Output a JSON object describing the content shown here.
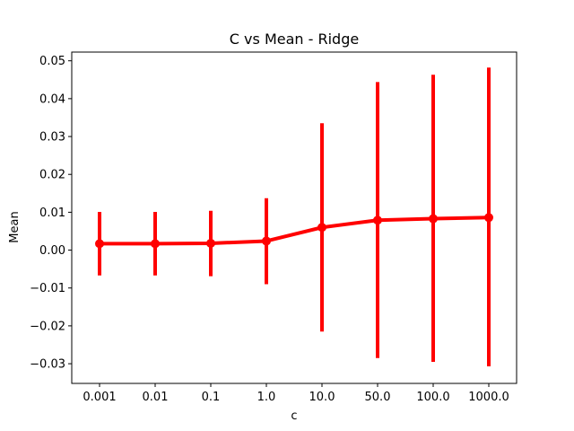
{
  "chart_data": {
    "type": "line",
    "title": "C vs Mean - Ridge",
    "xlabel": "c",
    "ylabel": "Mean",
    "categories": [
      "0.001",
      "0.01",
      "0.1",
      "1.0",
      "10.0",
      "50.0",
      "100.0",
      "1000.0"
    ],
    "series": [
      {
        "values": [
          0.0017,
          0.0017,
          0.0018,
          0.0024,
          0.006,
          0.0079,
          0.0083,
          0.0086
        ],
        "error_low": [
          -0.0067,
          -0.0067,
          -0.0069,
          -0.009,
          -0.0215,
          -0.0285,
          -0.0295,
          -0.0307
        ],
        "error_high": [
          0.0101,
          0.0101,
          0.0104,
          0.0137,
          0.0335,
          0.0444,
          0.0463,
          0.0482
        ],
        "color": "#ff0000"
      }
    ],
    "ylim": [
      -0.0352,
      0.0523
    ],
    "yticks": [
      -0.03,
      -0.02,
      -0.01,
      0.0,
      0.01,
      0.02,
      0.03,
      0.04,
      0.05
    ],
    "ytick_labels": [
      "−0.03",
      "−0.02",
      "−0.01",
      "0.00",
      "0.01",
      "0.02",
      "0.03",
      "0.04",
      "0.05"
    ],
    "grid": false,
    "legend": "none"
  }
}
